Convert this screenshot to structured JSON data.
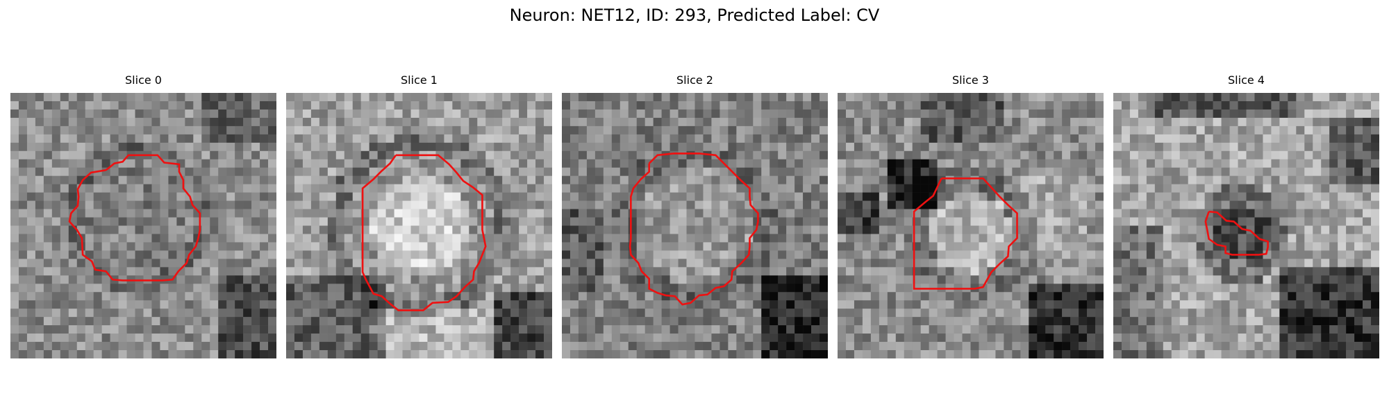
{
  "figure": {
    "title": "Neuron: NET12, ID: 293, Predicted Label: CV"
  },
  "panels": [
    {
      "label": "Slice 0"
    },
    {
      "label": "Slice 1"
    },
    {
      "label": "Slice 2"
    },
    {
      "label": "Slice 3"
    },
    {
      "label": "Slice 4"
    }
  ],
  "colors": {
    "contour": "#ee1111",
    "background": "#ffffff"
  }
}
